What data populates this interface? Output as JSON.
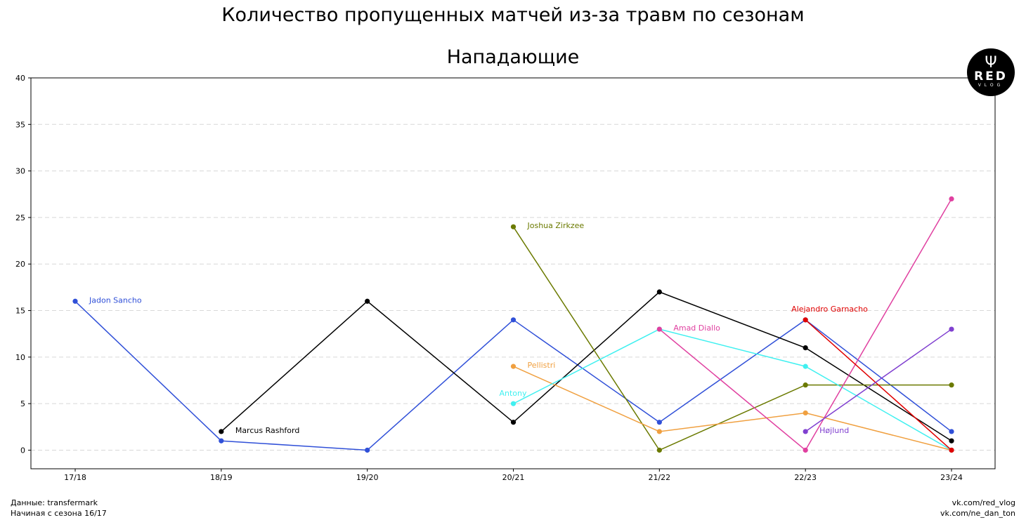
{
  "chart_data": {
    "type": "line",
    "title": "Количество пропущенных матчей из-за травм по сезонам",
    "subtitle": "Нападающие",
    "x": [
      "17/18",
      "18/19",
      "19/20",
      "20/21",
      "21/22",
      "22/23",
      "23/24"
    ],
    "yticks": [
      0,
      5,
      10,
      15,
      20,
      25,
      30,
      35,
      40
    ],
    "ylim": [
      -2,
      40
    ],
    "grid": "horizontal dashed",
    "series": [
      {
        "name": "Jadon Sancho",
        "color": "#3050d8",
        "values": [
          16,
          1,
          0,
          14,
          3,
          14,
          2
        ]
      },
      {
        "name": "Marcus Rashford",
        "color": "#000000",
        "values": [
          null,
          2,
          16,
          3,
          17,
          11,
          1
        ]
      },
      {
        "name": "Joshua Zirkzee",
        "color": "#6b7a00",
        "values": [
          null,
          null,
          null,
          24,
          0,
          7,
          7
        ]
      },
      {
        "name": "Pellistri",
        "color": "#f0a040",
        "values": [
          null,
          null,
          null,
          9,
          2,
          4,
          0
        ]
      },
      {
        "name": "Antony",
        "color": "#40f0f0",
        "values": [
          null,
          null,
          null,
          5,
          13,
          9,
          0
        ]
      },
      {
        "name": "Amad Diallo",
        "color": "#e040a0",
        "values": [
          null,
          null,
          null,
          null,
          13,
          0,
          27
        ]
      },
      {
        "name": "Alejandro Garnacho",
        "color": "#e00000",
        "values": [
          null,
          null,
          null,
          null,
          null,
          14,
          0
        ]
      },
      {
        "name": "Højlund",
        "color": "#8040d0",
        "values": [
          null,
          null,
          null,
          null,
          null,
          2,
          13
        ]
      }
    ]
  },
  "footer": {
    "source": "Данные: transfermark",
    "since": "Начиная с сезона 16/17",
    "link1": "vk.com/red_vlog",
    "link2": "vk.com/ne_dan_ton"
  },
  "logo": {
    "text": "RED",
    "sub": "VLOG"
  }
}
